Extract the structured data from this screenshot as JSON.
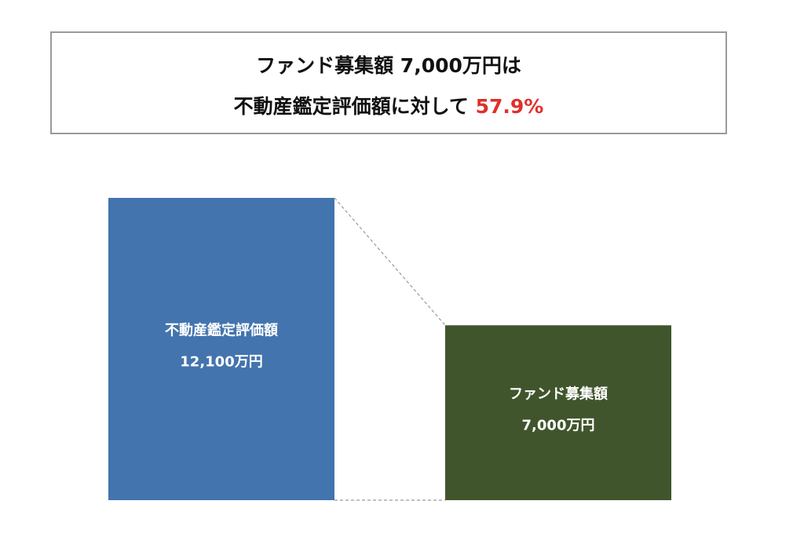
{
  "headline": {
    "line1": "ファンド募集額 7,000万円は",
    "line2_prefix": "不動産鑑定評価額に対して ",
    "line2_highlight": "57.9%",
    "highlight_color": "#e0302a"
  },
  "chart_data": {
    "type": "bar",
    "categories": [
      "不動産鑑定評価額",
      "ファンド募集額"
    ],
    "values": [
      12100,
      7000
    ],
    "value_labels": [
      "12,100万円",
      "7,000万円"
    ],
    "unit": "万円",
    "colors": [
      "#4374ae",
      "#40552c"
    ],
    "connector_style": "dashed",
    "grid": false
  }
}
